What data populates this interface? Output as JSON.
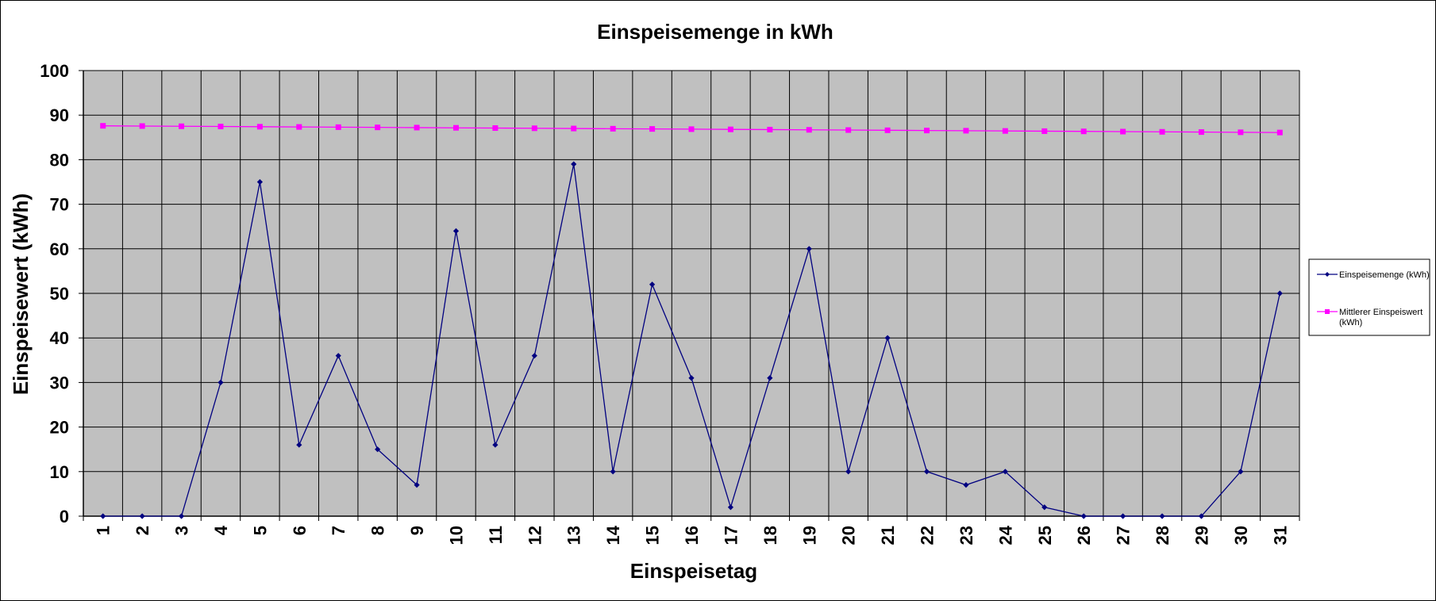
{
  "chart_data": {
    "type": "line",
    "title": "Einspeisemenge in kWh",
    "xlabel": "Einspeisetag",
    "ylabel": "Einspeisewert  (kWh)",
    "ylim": [
      0,
      100
    ],
    "yticks": [
      0,
      10,
      20,
      30,
      40,
      50,
      60,
      70,
      80,
      90,
      100
    ],
    "grid": true,
    "legend_position": "right",
    "plot_background": "#c0c0c0",
    "categories": [
      "1",
      "2",
      "3",
      "4",
      "5",
      "6",
      "7",
      "8",
      "9",
      "10",
      "11",
      "12",
      "13",
      "14",
      "15",
      "16",
      "17",
      "18",
      "19",
      "20",
      "21",
      "22",
      "23",
      "24",
      "25",
      "26",
      "27",
      "28",
      "29",
      "30",
      "31"
    ],
    "series": [
      {
        "name": "Einspeisemenge (kWh)",
        "color": "#000080",
        "marker": "diamond",
        "values": [
          0,
          0,
          0,
          30,
          75,
          16,
          36,
          15,
          7,
          64,
          16,
          36,
          79,
          10,
          52,
          31,
          2,
          31,
          60,
          10,
          40,
          10,
          7,
          10,
          2,
          0,
          0,
          0,
          0,
          10,
          50
        ]
      },
      {
        "name": "Mittlerer Einspeiswert (kWh)",
        "legend_lines": [
          "Mittlerer Einspeiswert",
          "(kWh)"
        ],
        "color": "#ff00ff",
        "marker": "square",
        "values": [
          87.6,
          87.55,
          87.5,
          87.45,
          87.4,
          87.35,
          87.3,
          87.25,
          87.2,
          87.15,
          87.1,
          87.05,
          87.0,
          86.95,
          86.9,
          86.85,
          86.8,
          86.75,
          86.7,
          86.65,
          86.6,
          86.55,
          86.5,
          86.45,
          86.4,
          86.35,
          86.3,
          86.25,
          86.2,
          86.15,
          86.1
        ]
      }
    ]
  }
}
